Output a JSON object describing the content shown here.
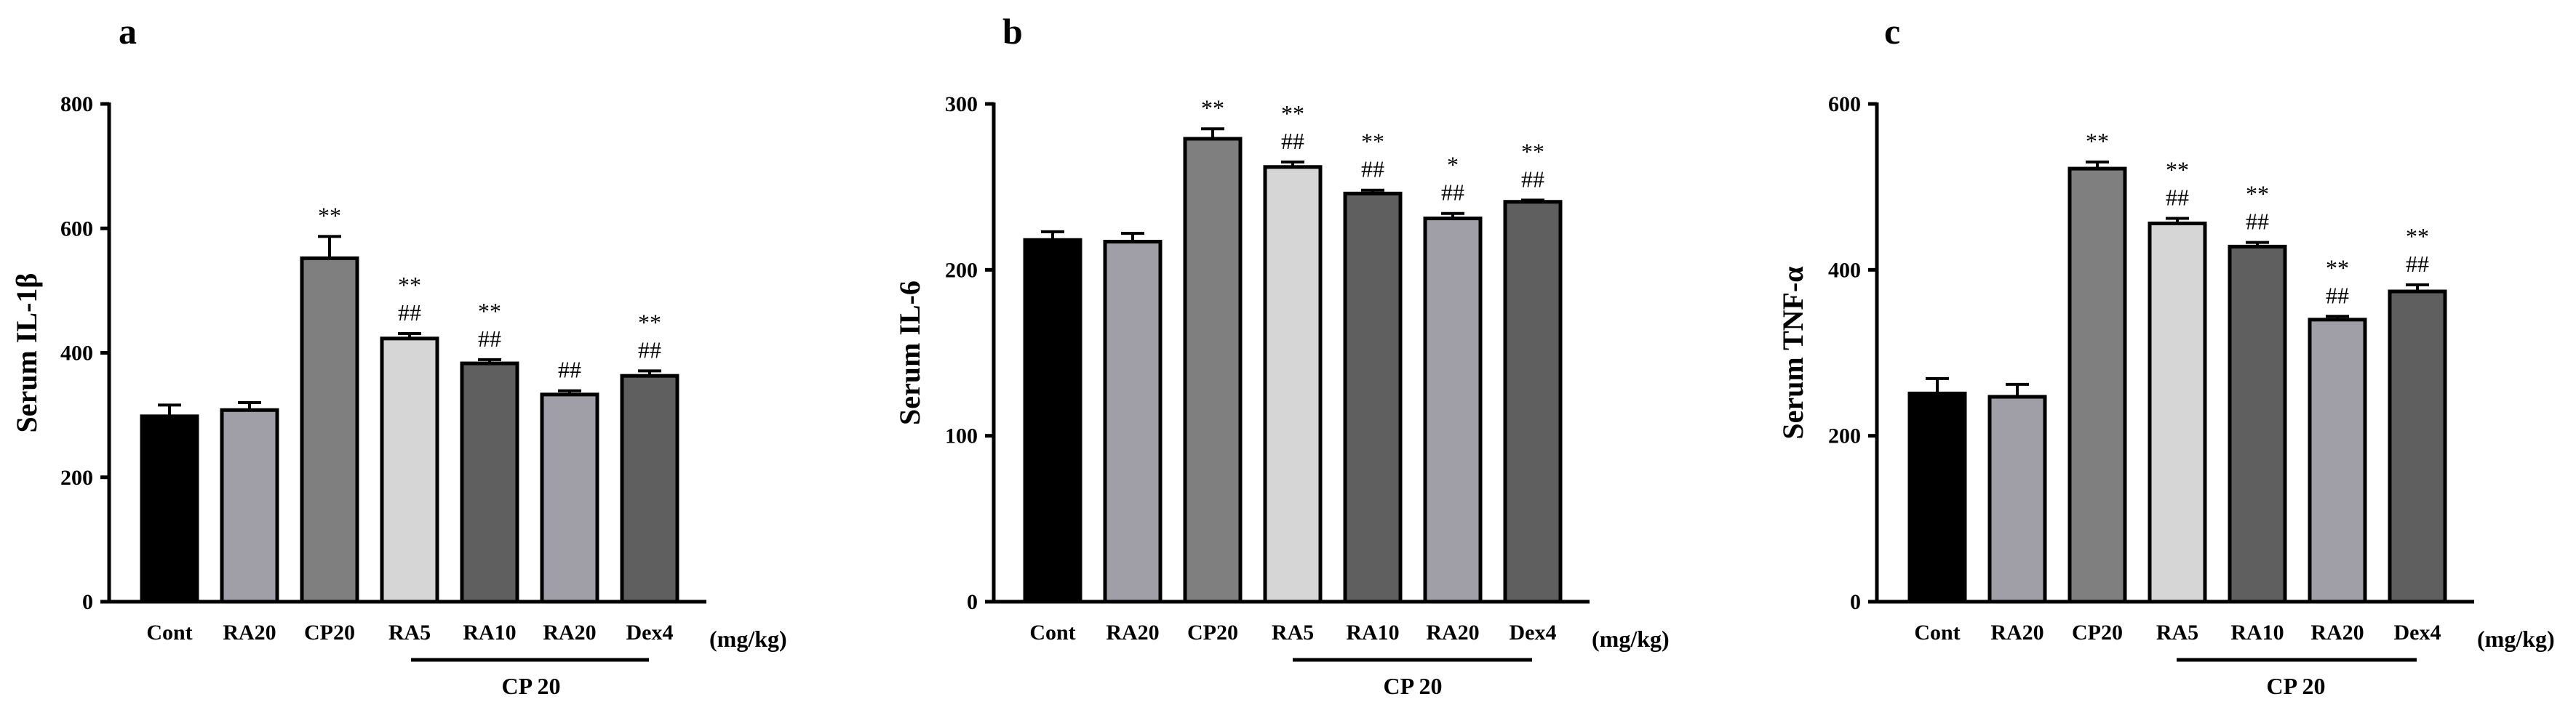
{
  "units": "(mg/kg)",
  "group_label": "CP 20",
  "colors": [
    "#000000",
    "#a09ea6",
    "#7f7f7f",
    "#d6d6d6",
    "#5f5f5f",
    "#a09ea6",
    "#5f5f5f"
  ],
  "chart_data": [
    {
      "type": "bar",
      "panel": "a",
      "ylabel": "Serum IL-1β",
      "ylim": [
        0,
        800
      ],
      "yticks": [
        0,
        200,
        400,
        600,
        800
      ],
      "categories": [
        "Cont",
        "RA20",
        "CP20",
        "RA5",
        "RA10",
        "RA20",
        "Dex4"
      ],
      "values": [
        298,
        308,
        552,
        423,
        383,
        333,
        363
      ],
      "errors": [
        18,
        12,
        35,
        8,
        6,
        6,
        8
      ],
      "annotations": [
        [],
        [],
        [
          "**"
        ],
        [
          "**",
          "##"
        ],
        [
          "**",
          "##"
        ],
        [
          "##"
        ],
        [
          "**",
          "##"
        ]
      ]
    },
    {
      "type": "bar",
      "panel": "b",
      "ylabel": "Serum IL-6",
      "ylim": [
        0,
        300
      ],
      "yticks": [
        0,
        100,
        200,
        300
      ],
      "categories": [
        "Cont",
        "RA20",
        "CP20",
        "RA5",
        "RA10",
        "RA20",
        "Dex4"
      ],
      "values": [
        218,
        217,
        279,
        262,
        246,
        231,
        241
      ],
      "errors": [
        5,
        5,
        6,
        3,
        2,
        3,
        1
      ],
      "annotations": [
        [],
        [],
        [
          "**"
        ],
        [
          "**",
          "##"
        ],
        [
          "**",
          "##"
        ],
        [
          "*",
          "##"
        ],
        [
          "**",
          "##"
        ]
      ]
    },
    {
      "type": "bar",
      "panel": "c",
      "ylabel": "Serum TNF-α",
      "ylim": [
        0,
        600
      ],
      "yticks": [
        0,
        200,
        400,
        600
      ],
      "categories": [
        "Cont",
        "RA20",
        "CP20",
        "RA5",
        "RA10",
        "RA20",
        "Dex4"
      ],
      "values": [
        251,
        247,
        522,
        456,
        428,
        340,
        374
      ],
      "errors": [
        18,
        15,
        8,
        6,
        5,
        4,
        8
      ],
      "annotations": [
        [],
        [],
        [
          "**"
        ],
        [
          "**",
          "##"
        ],
        [
          "**",
          "##"
        ],
        [
          "**",
          "##"
        ],
        [
          "**",
          "##"
        ]
      ]
    }
  ]
}
